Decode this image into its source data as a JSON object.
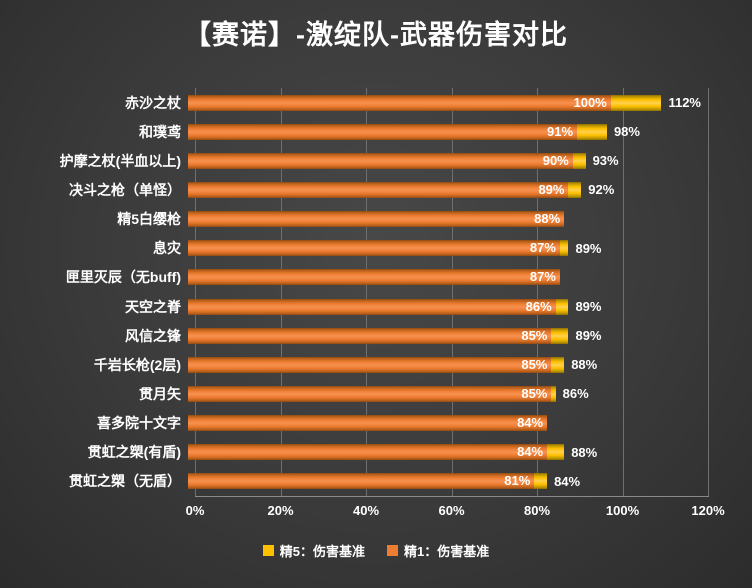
{
  "title": "【赛诺】-激绽队-武器伤害对比",
  "colors": {
    "background": "#3A3A3A",
    "text": "#FFFFFF",
    "gridline": "#6F6F6F",
    "refine5": "#FFC000",
    "refine1": "#ED7D31"
  },
  "chart_data": {
    "type": "bar",
    "orientation": "horizontal",
    "title": "【赛诺】-激绽队-武器伤害对比",
    "xlim": [
      0,
      120
    ],
    "x_ticks": [
      "0%",
      "20%",
      "40%",
      "60%",
      "80%",
      "100%",
      "120%"
    ],
    "grid": true,
    "legend_position": "bottom",
    "categories": [
      "赤沙之杖",
      "和璞鸢",
      "护摩之杖(半血以上)",
      "决斗之枪（单怪）",
      "精5白缨枪",
      "息灾",
      "匣里灭辰（无buff)",
      "天空之脊",
      "风信之锋",
      "千岩长枪(2层)",
      "贯月矢",
      "喜多院十文字",
      "贯虹之槊(有盾)",
      "贯虹之槊（无盾）"
    ],
    "series": [
      {
        "name": "精5：伤害基准",
        "color": "#FFC000",
        "values": [
          112,
          98,
          93,
          92,
          null,
          89,
          null,
          89,
          89,
          88,
          86,
          null,
          88,
          84
        ]
      },
      {
        "name": "精1：伤害基准",
        "color": "#ED7D31",
        "values": [
          100,
          91,
          90,
          89,
          88,
          87,
          87,
          86,
          85,
          85,
          85,
          84,
          84,
          81
        ]
      }
    ]
  }
}
